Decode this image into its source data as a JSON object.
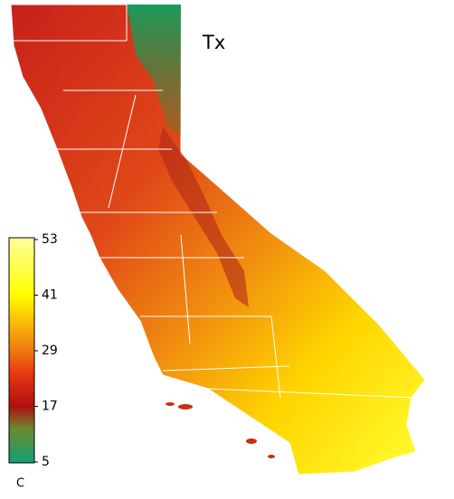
{
  "title": "Tx",
  "colorbar": {
    "unit": "C",
    "range": [
      5,
      53
    ],
    "ticks": [
      5,
      17,
      29,
      41,
      53
    ]
  }
}
